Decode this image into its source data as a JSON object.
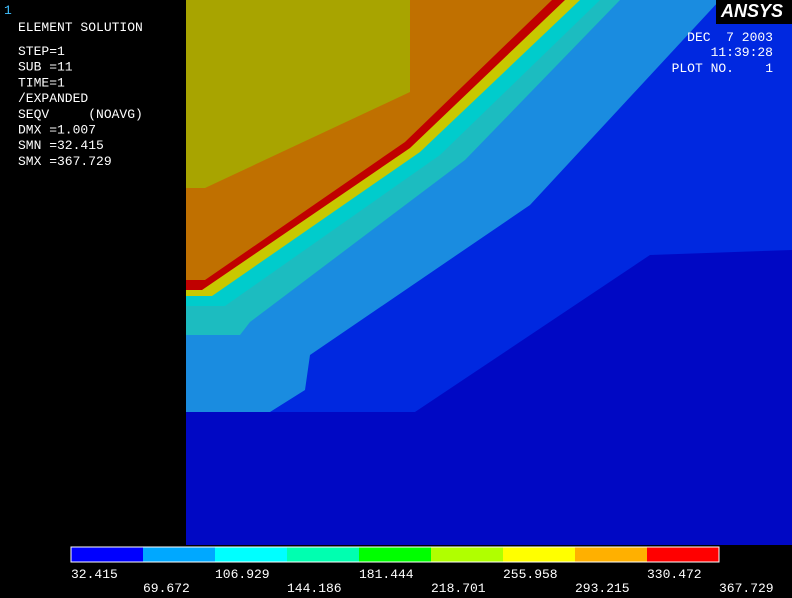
{
  "window_number": "1",
  "info": {
    "title": "ELEMENT SOLUTION",
    "lines": [
      "STEP=1",
      "SUB =11",
      "TIME=1",
      "/EXPANDED",
      "SEQV     (NOAVG)",
      "DMX =1.007",
      "SMN =32.415",
      "SMX =367.729"
    ]
  },
  "logo": "ANSYS",
  "timestamp": {
    "date": "DEC  7 2003",
    "time": "11:39:28",
    "plot": "PLOT NO.    1"
  },
  "legend": {
    "colors": [
      "#0000ff",
      "#00a8ff",
      "#00ffff",
      "#00ffb0",
      "#00ff00",
      "#b0ff00",
      "#ffff00",
      "#ffb000",
      "#ff0000"
    ],
    "labels": [
      "32.415",
      "69.672",
      "106.929",
      "144.186",
      "181.444",
      "218.701",
      "255.958",
      "293.215",
      "330.472",
      "367.729"
    ]
  }
}
